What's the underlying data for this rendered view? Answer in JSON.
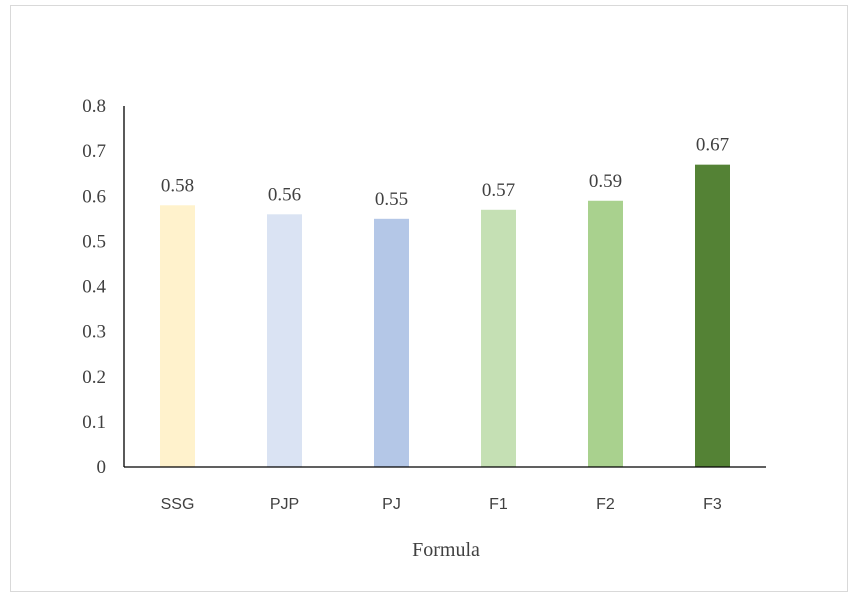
{
  "chart_data": {
    "type": "bar",
    "title": "",
    "xlabel": "Formula",
    "ylabel": "",
    "categories": [
      "SSG",
      "PJP",
      "PJ",
      "F1",
      "F2",
      "F3"
    ],
    "values": [
      0.58,
      0.56,
      0.55,
      0.57,
      0.59,
      0.67
    ],
    "data_labels": [
      "0.58",
      "0.56",
      "0.55",
      "0.57",
      "0.59",
      "0.67"
    ],
    "y_ticks": [
      "0",
      "0.1",
      "0.2",
      "0.3",
      "0.4",
      "0.5",
      "0.6",
      "0.7",
      "0.8"
    ],
    "ylim": [
      0,
      0.8
    ],
    "grid": false,
    "legend": "none",
    "bar_colors": [
      "#FFF2CC",
      "#DAE3F3",
      "#B4C7E7",
      "#C5E0B4",
      "#A9D18E",
      "#548235"
    ]
  }
}
